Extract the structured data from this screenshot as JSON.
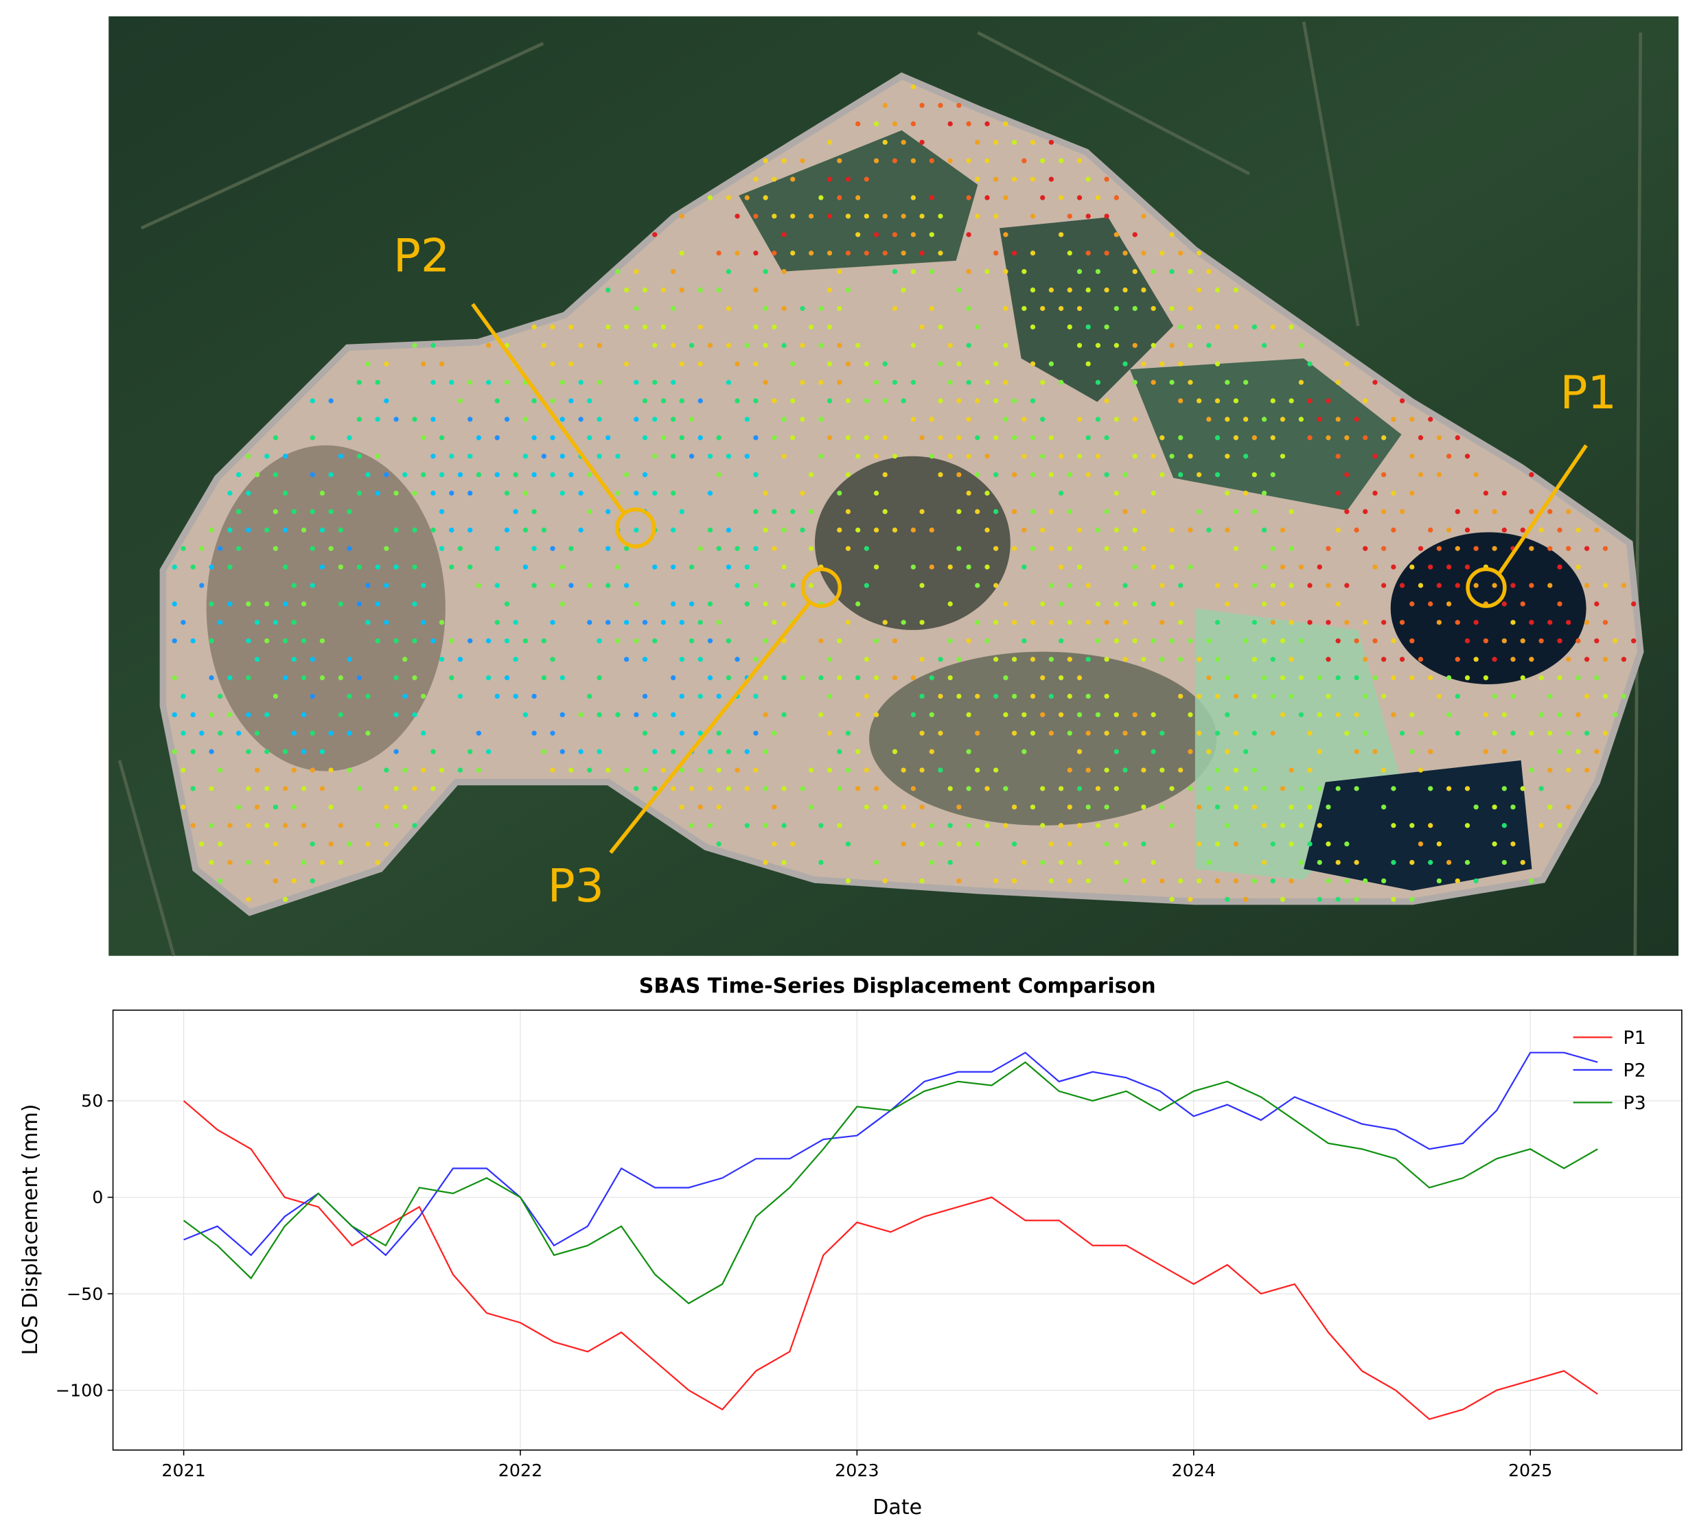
{
  "map": {
    "labels": [
      "P1",
      "P2",
      "P3"
    ]
  },
  "chart_data": {
    "type": "line",
    "title": "SBAS Time-Series Displacement Comparison",
    "x_label": "Date",
    "y_label": "LOS Displacement (mm)",
    "x": [
      2021.0,
      2021.1,
      2021.2,
      2021.3,
      2021.4,
      2021.5,
      2021.6,
      2021.7,
      2021.8,
      2021.9,
      2022.0,
      2022.1,
      2022.2,
      2022.3,
      2022.4,
      2022.5,
      2022.6,
      2022.7,
      2022.8,
      2022.9,
      2023.0,
      2023.1,
      2023.2,
      2023.3,
      2023.4,
      2023.5,
      2023.6,
      2023.7,
      2023.8,
      2023.9,
      2024.0,
      2024.1,
      2024.2,
      2024.3,
      2024.4,
      2024.5,
      2024.6,
      2024.7,
      2024.8,
      2024.9,
      2025.0,
      2025.1,
      2025.2
    ],
    "series": [
      {
        "name": "P1",
        "color": "#ff2020",
        "values": [
          50,
          35,
          25,
          0,
          -5,
          -25,
          -15,
          -5,
          -40,
          -60,
          -65,
          -75,
          -80,
          -70,
          -85,
          -100,
          -110,
          -90,
          -80,
          -30,
          -13,
          -18,
          -10,
          -5,
          0,
          -12,
          -12,
          -25,
          -25,
          -35,
          -45,
          -35,
          -50,
          -45,
          -70,
          -90,
          -100,
          -115,
          -110,
          -100,
          -95,
          -90,
          -102
        ]
      },
      {
        "name": "P2",
        "color": "#3030ff",
        "values": [
          -22,
          -15,
          -30,
          -10,
          2,
          -15,
          -30,
          -10,
          15,
          15,
          0,
          -25,
          -15,
          15,
          5,
          5,
          10,
          20,
          20,
          30,
          32,
          45,
          60,
          65,
          65,
          75,
          60,
          65,
          62,
          55,
          42,
          48,
          40,
          52,
          45,
          38,
          35,
          25,
          28,
          45,
          75,
          75,
          70
        ]
      },
      {
        "name": "P3",
        "color": "#109010",
        "values": [
          -12,
          -25,
          -42,
          -15,
          2,
          -15,
          -25,
          5,
          2,
          10,
          0,
          -30,
          -25,
          -15,
          -40,
          -55,
          -45,
          -10,
          5,
          25,
          47,
          45,
          55,
          60,
          58,
          70,
          55,
          50,
          55,
          45,
          55,
          60,
          52,
          40,
          28,
          25,
          20,
          5,
          10,
          20,
          25,
          15,
          25
        ]
      }
    ],
    "xlim": [
      2020.79,
      2025.45
    ],
    "ylim": [
      -131,
      97
    ],
    "xticks": [
      2021,
      2022,
      2023,
      2024,
      2025
    ],
    "yticks": [
      {
        "value": -100,
        "label": "−100"
      },
      {
        "value": -50,
        "label": "−50"
      },
      0,
      50
    ],
    "grid": true,
    "legend": "upper right"
  }
}
